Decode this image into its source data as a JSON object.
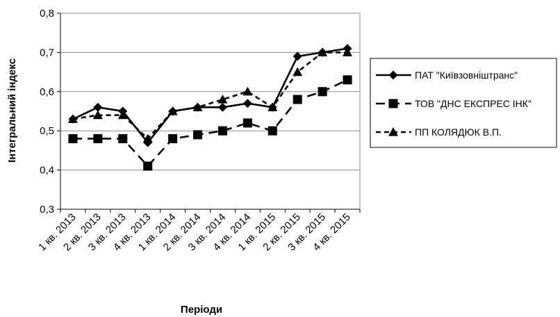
{
  "chart_data": {
    "type": "line",
    "xlabel": "Періоди",
    "ylabel": "Інтегральний індекс",
    "ylim": [
      0.3,
      0.8
    ],
    "yticks": [
      "0,3",
      "0,4",
      "0,5",
      "0,6",
      "0,7",
      "0,8"
    ],
    "grid": "horizontal",
    "legend_position": "right",
    "categories": [
      "1 кв. 2013",
      "2 кв. 2013",
      "3 кв. 2013",
      "4 кв. 2013",
      "1 кв. 2014",
      "2 кв. 2014",
      "3 кв. 2014",
      "4 кв. 2014",
      "1 кв. 2015",
      "2 кв. 2015",
      "3 кв. 2015",
      "4 кв. 2015"
    ],
    "series": [
      {
        "name": "ПАТ  \"Київзовніштранс\"",
        "marker": "diamond",
        "dash": "solid",
        "color": "#000000",
        "values": [
          0.53,
          0.56,
          0.55,
          0.47,
          0.55,
          0.56,
          0.56,
          0.57,
          0.56,
          0.69,
          0.7,
          0.71
        ]
      },
      {
        "name": "ТОВ \"ДНС ЕКСПРЕС ІНК\"",
        "marker": "square",
        "dash": "long-dash",
        "color": "#000000",
        "values": [
          0.48,
          0.48,
          0.48,
          0.41,
          0.48,
          0.49,
          0.5,
          0.52,
          0.5,
          0.58,
          0.6,
          0.63
        ]
      },
      {
        "name": "ПП КОЛЯДЮК В.П.",
        "marker": "triangle",
        "dash": "short-dash",
        "color": "#000000",
        "values": [
          0.53,
          0.54,
          0.54,
          0.48,
          0.55,
          0.56,
          0.58,
          0.6,
          0.56,
          0.65,
          0.7,
          0.7
        ]
      }
    ]
  }
}
